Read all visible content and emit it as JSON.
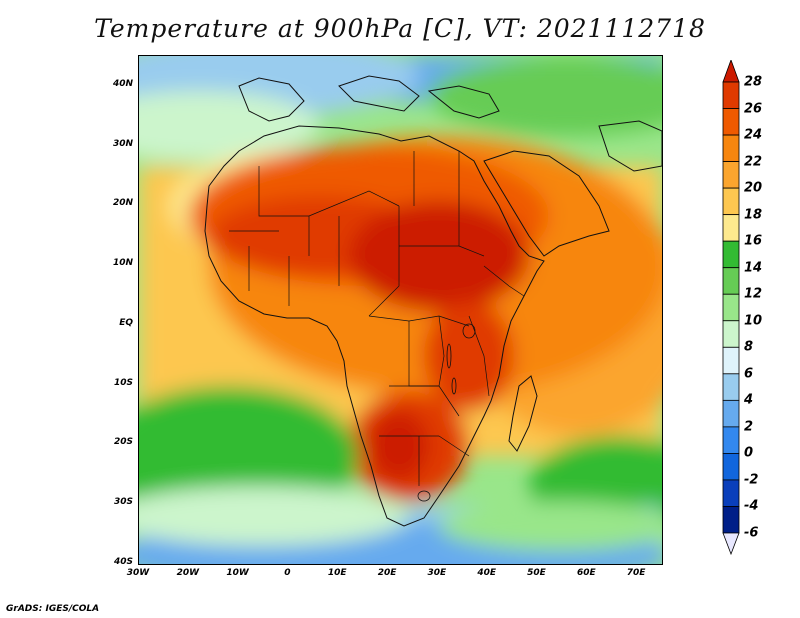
{
  "title": "Temperature at 900hPa [C], VT: 2021112718",
  "credit": "GrADS: IGES/COLA",
  "axes": {
    "lat_labels": [
      "40N",
      "30N",
      "20N",
      "10N",
      "EQ",
      "10S",
      "20S",
      "30S",
      "40S"
    ],
    "lat_values": [
      40,
      30,
      20,
      10,
      0,
      -10,
      -20,
      -30,
      -40
    ],
    "lon_labels": [
      "30W",
      "20W",
      "10W",
      "0",
      "10E",
      "20E",
      "30E",
      "40E",
      "50E",
      "60E",
      "70E"
    ],
    "lon_values": [
      -30,
      -20,
      -10,
      0,
      10,
      20,
      30,
      40,
      50,
      60,
      70
    ],
    "lon_range": [
      -30,
      75
    ],
    "lat_range": [
      -40,
      45
    ]
  },
  "colorbar": {
    "labels": [
      "28",
      "26",
      "24",
      "22",
      "20",
      "18",
      "16",
      "14",
      "12",
      "10",
      "8",
      "6",
      "4",
      "2",
      "0",
      "-2",
      "-4",
      "-6"
    ],
    "colors": [
      "#cc1a00",
      "#e03a00",
      "#ef5a00",
      "#f7860f",
      "#fba52e",
      "#fdc750",
      "#fde98e",
      "#33bb33",
      "#66cc55",
      "#99e68a",
      "#ccf5cc",
      "#dff3fb",
      "#99ccee",
      "#66aaee",
      "#3388ee",
      "#1166dd",
      "#0a3fbb",
      "#001f88",
      "#0a0a66"
    ]
  }
}
